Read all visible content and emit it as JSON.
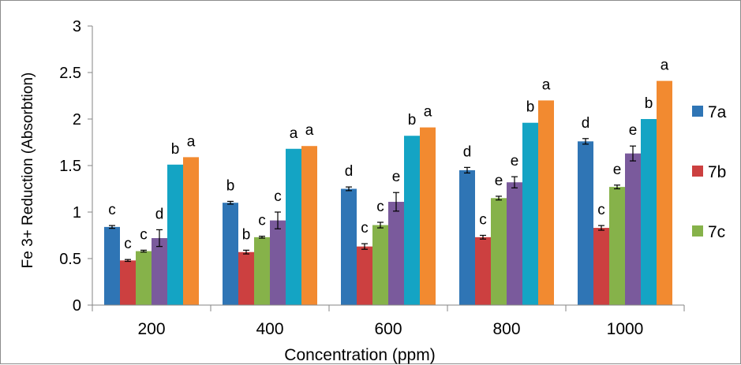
{
  "chart_data": {
    "type": "bar",
    "title": "",
    "xlabel": "Concentration (ppm)",
    "ylabel": "Fe 3+ Reduction (Absorbtion)",
    "ylim": [
      0,
      3
    ],
    "yticks": [
      "0",
      "0.5",
      "1",
      "1.5",
      "2",
      "2.5",
      "3"
    ],
    "categories": [
      "200",
      "400",
      "600",
      "800",
      "1000"
    ],
    "legend_position": "right",
    "grid": false,
    "series": [
      {
        "name": "7a",
        "color": "#2f75b5",
        "values": [
          0.84,
          1.1,
          1.25,
          1.45,
          1.76
        ],
        "errors": [
          0.015,
          0.015,
          0.02,
          0.03,
          0.03
        ],
        "labels": [
          "c",
          "b",
          "d",
          "d",
          "d"
        ]
      },
      {
        "name": "7b",
        "color": "#cc4040",
        "values": [
          0.48,
          0.57,
          0.63,
          0.73,
          0.83
        ],
        "errors": [
          0.01,
          0.02,
          0.03,
          0.02,
          0.025
        ],
        "labels": [
          "c",
          "b",
          "c",
          "c",
          "c"
        ]
      },
      {
        "name": "7c",
        "color": "#86b24a",
        "values": [
          0.58,
          0.73,
          0.86,
          1.15,
          1.27
        ],
        "errors": [
          0.01,
          0.01,
          0.03,
          0.02,
          0.02
        ],
        "labels": [
          "c",
          "c",
          "c",
          "e",
          "e"
        ]
      },
      {
        "name": "",
        "color": "#7a5a9c",
        "values": [
          0.72,
          0.91,
          1.11,
          1.32,
          1.63
        ],
        "errors": [
          0.09,
          0.09,
          0.1,
          0.06,
          0.08
        ],
        "labels": [
          "d",
          "c",
          "e",
          "e",
          "e"
        ]
      },
      {
        "name": "",
        "color": "#14a4c4",
        "values": [
          1.51,
          1.68,
          1.82,
          1.96,
          2.0
        ],
        "errors": [
          0,
          0,
          0,
          0,
          0
        ],
        "labels": [
          "b",
          "a",
          "b",
          "b",
          "b"
        ]
      },
      {
        "name": "",
        "color": "#f28a30",
        "values": [
          1.59,
          1.71,
          1.91,
          2.2,
          2.41
        ],
        "errors": [
          0,
          0,
          0,
          0,
          0
        ],
        "labels": [
          "a",
          "a",
          "a",
          "a",
          "a"
        ]
      }
    ]
  }
}
